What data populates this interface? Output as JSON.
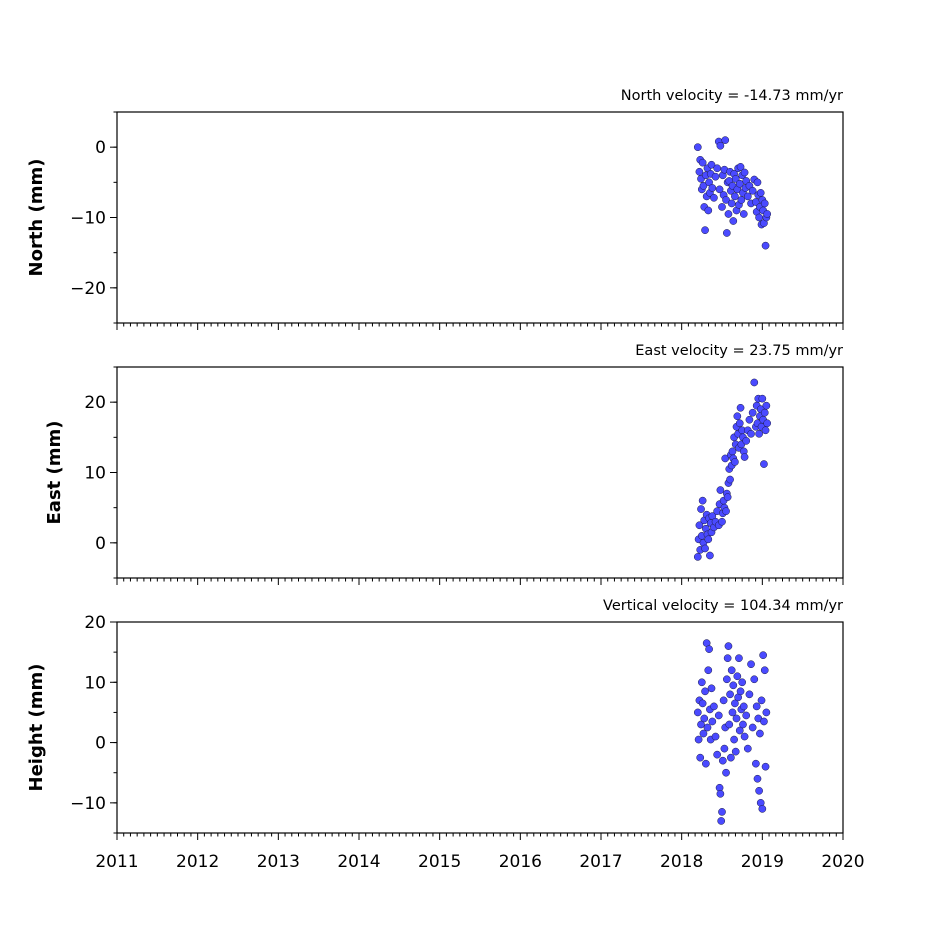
{
  "chart_data": [
    {
      "type": "scatter",
      "title": "North velocity = -14.73 mm/yr",
      "ylabel": "North (mm)",
      "xlabel": "",
      "xlim": [
        2011,
        2020
      ],
      "ylim": [
        -25,
        5
      ],
      "yticks": [
        0,
        -10,
        -20
      ],
      "yticklabels": [
        "0",
        "−10",
        "−20"
      ],
      "xticklabels": [],
      "series": [
        {
          "color": "#4a4aff",
          "x": [
            2018.2,
            2018.22,
            2018.23,
            2018.24,
            2018.25,
            2018.26,
            2018.27,
            2018.28,
            2018.29,
            2018.3,
            2018.31,
            2018.32,
            2018.33,
            2018.34,
            2018.35,
            2018.36,
            2018.37,
            2018.38,
            2018.4,
            2018.42,
            2018.44,
            2018.46,
            2018.47,
            2018.48,
            2018.5,
            2018.51,
            2018.52,
            2018.53,
            2018.54,
            2018.55,
            2018.56,
            2018.57,
            2018.58,
            2018.59,
            2018.6,
            2018.61,
            2018.62,
            2018.63,
            2018.64,
            2018.65,
            2018.66,
            2018.67,
            2018.68,
            2018.69,
            2018.7,
            2018.71,
            2018.72,
            2018.73,
            2018.74,
            2018.75,
            2018.76,
            2018.77,
            2018.78,
            2018.79,
            2018.8,
            2018.82,
            2018.84,
            2018.86,
            2018.88,
            2018.9,
            2018.92,
            2018.93,
            2018.94,
            2018.95,
            2018.96,
            2018.97,
            2018.98,
            2018.99,
            2019.0,
            2019.01,
            2019.02,
            2019.03,
            2019.04,
            2019.05,
            2019.06
          ],
          "y": [
            0.0,
            -3.5,
            -1.8,
            -4.5,
            -6.0,
            -2.2,
            -5.5,
            -8.5,
            -11.8,
            -4.0,
            -7.0,
            -3.0,
            -9.0,
            -5.0,
            -6.5,
            -3.8,
            -2.5,
            -5.8,
            -7.2,
            -4.2,
            -3.0,
            0.8,
            -6.0,
            0.2,
            -8.5,
            -4.0,
            -6.8,
            -3.2,
            1.0,
            -7.5,
            -12.2,
            -5.0,
            -9.5,
            -4.8,
            -3.5,
            -6.2,
            -8.0,
            -5.5,
            -10.5,
            -3.8,
            -7.0,
            -4.5,
            -9.0,
            -6.0,
            -3.0,
            -8.2,
            -5.2,
            -2.8,
            -7.5,
            -4.0,
            -6.5,
            -9.5,
            -3.6,
            -5.8,
            -4.8,
            -7.0,
            -5.5,
            -8.0,
            -6.2,
            -4.6,
            -7.8,
            -9.2,
            -5.0,
            -6.8,
            -10.0,
            -8.5,
            -6.5,
            -11.0,
            -7.5,
            -9.0,
            -10.8,
            -8.0,
            -14.0,
            -10.0,
            -9.5
          ]
        }
      ]
    },
    {
      "type": "scatter",
      "title": "East velocity = 23.75 mm/yr",
      "ylabel": "East (mm)",
      "xlabel": "",
      "xlim": [
        2011,
        2020
      ],
      "ylim": [
        -5,
        25
      ],
      "yticks": [
        0,
        10,
        20
      ],
      "yticklabels": [
        "0",
        "10",
        "20"
      ],
      "xticklabels": [],
      "series": [
        {
          "color": "#4a4aff",
          "x": [
            2018.2,
            2018.21,
            2018.22,
            2018.23,
            2018.24,
            2018.25,
            2018.26,
            2018.27,
            2018.28,
            2018.29,
            2018.3,
            2018.31,
            2018.32,
            2018.33,
            2018.34,
            2018.35,
            2018.36,
            2018.37,
            2018.38,
            2018.4,
            2018.42,
            2018.44,
            2018.46,
            2018.47,
            2018.48,
            2018.5,
            2018.51,
            2018.52,
            2018.53,
            2018.54,
            2018.55,
            2018.56,
            2018.57,
            2018.58,
            2018.59,
            2018.6,
            2018.61,
            2018.62,
            2018.63,
            2018.64,
            2018.65,
            2018.66,
            2018.67,
            2018.68,
            2018.69,
            2018.7,
            2018.71,
            2018.72,
            2018.73,
            2018.74,
            2018.75,
            2018.76,
            2018.77,
            2018.78,
            2018.8,
            2018.82,
            2018.84,
            2018.86,
            2018.88,
            2018.9,
            2018.92,
            2018.93,
            2018.94,
            2018.95,
            2018.96,
            2018.97,
            2018.98,
            2018.99,
            2019.0,
            2019.01,
            2019.02,
            2019.03,
            2019.04,
            2019.05,
            2019.06
          ],
          "y": [
            -2.0,
            0.5,
            2.5,
            -1.0,
            4.8,
            1.0,
            6.0,
            0.0,
            3.2,
            -0.8,
            2.0,
            4.0,
            1.2,
            0.5,
            3.5,
            -1.8,
            2.8,
            1.5,
            3.8,
            2.2,
            3.0,
            4.5,
            2.5,
            5.5,
            7.5,
            3.0,
            4.2,
            6.0,
            5.0,
            12.0,
            4.5,
            7.0,
            6.5,
            8.5,
            10.5,
            9.0,
            12.5,
            11.0,
            13.0,
            12.0,
            15.0,
            11.5,
            14.0,
            16.5,
            18.0,
            15.5,
            13.5,
            17.0,
            19.2,
            14.0,
            16.0,
            15.0,
            13.0,
            12.2,
            14.5,
            16.0,
            17.5,
            15.5,
            18.5,
            22.8,
            16.5,
            19.5,
            17.0,
            20.5,
            15.5,
            18.0,
            19.0,
            16.5,
            20.5,
            17.5,
            11.2,
            18.5,
            16.0,
            19.5,
            17.0
          ]
        }
      ]
    },
    {
      "type": "scatter",
      "title": "Vertical velocity = 104.34 mm/yr",
      "ylabel": "Height (mm)",
      "xlabel": "",
      "xlim": [
        2011,
        2020
      ],
      "ylim": [
        -15,
        20
      ],
      "yticks": [
        20,
        10,
        0,
        -10
      ],
      "yticklabels": [
        "20",
        "10",
        "0",
        "−10"
      ],
      "xticks": [
        2011,
        2012,
        2013,
        2014,
        2015,
        2016,
        2017,
        2018,
        2019,
        2020
      ],
      "xticklabels": [
        "2011",
        "2012",
        "2013",
        "2014",
        "2015",
        "2016",
        "2017",
        "2018",
        "2019",
        "2020"
      ],
      "series": [
        {
          "color": "#4a4aff",
          "x": [
            2018.2,
            2018.21,
            2018.22,
            2018.23,
            2018.24,
            2018.25,
            2018.26,
            2018.27,
            2018.28,
            2018.29,
            2018.3,
            2018.31,
            2018.32,
            2018.33,
            2018.34,
            2018.35,
            2018.36,
            2018.37,
            2018.38,
            2018.4,
            2018.42,
            2018.44,
            2018.46,
            2018.47,
            2018.48,
            2018.49,
            2018.5,
            2018.51,
            2018.52,
            2018.53,
            2018.54,
            2018.55,
            2018.56,
            2018.57,
            2018.58,
            2018.59,
            2018.6,
            2018.61,
            2018.62,
            2018.63,
            2018.64,
            2018.65,
            2018.66,
            2018.67,
            2018.68,
            2018.69,
            2018.7,
            2018.71,
            2018.72,
            2018.73,
            2018.74,
            2018.75,
            2018.76,
            2018.77,
            2018.78,
            2018.8,
            2018.82,
            2018.84,
            2018.86,
            2018.88,
            2018.9,
            2018.92,
            2018.93,
            2018.94,
            2018.95,
            2018.96,
            2018.97,
            2018.98,
            2018.99,
            2019.0,
            2019.01,
            2019.02,
            2019.03,
            2019.04,
            2019.05
          ],
          "y": [
            5.0,
            0.5,
            7.0,
            -2.5,
            3.0,
            10.0,
            6.5,
            1.5,
            4.0,
            8.5,
            -3.5,
            16.5,
            2.5,
            12.0,
            15.5,
            5.5,
            0.5,
            9.0,
            3.5,
            6.0,
            1.0,
            -2.0,
            4.5,
            -7.5,
            -8.5,
            -13.0,
            -11.5,
            -3.0,
            7.0,
            -1.0,
            2.5,
            -5.0,
            10.5,
            14.0,
            16.0,
            3.0,
            8.0,
            -2.5,
            12.0,
            5.0,
            9.5,
            0.5,
            6.5,
            -1.5,
            4.0,
            11.0,
            7.5,
            14.0,
            2.0,
            8.5,
            5.5,
            10.0,
            3.0,
            6.0,
            1.0,
            4.5,
            -1.0,
            8.0,
            13.0,
            2.5,
            10.5,
            -3.5,
            6.0,
            -6.0,
            4.0,
            -8.0,
            1.5,
            -10.0,
            7.0,
            -11.0,
            14.5,
            3.5,
            12.0,
            -4.0,
            5.0
          ]
        }
      ]
    }
  ]
}
